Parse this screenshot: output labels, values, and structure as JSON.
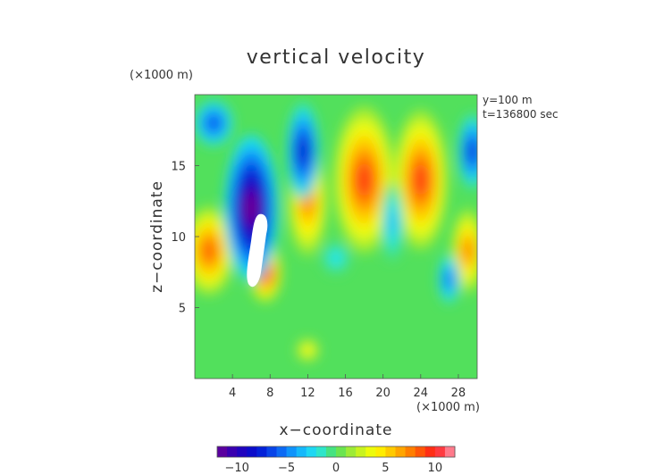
{
  "chart_data": {
    "type": "heatmap",
    "title": "vertical velocity",
    "xlabel": "x−coordinate",
    "ylabel": "z−coordinate",
    "x_unit": "(×1000 m)",
    "y_unit": "(×1000 m)",
    "annotations": [
      "y=100 m",
      "t=136800 sec"
    ],
    "xlim": [
      0,
      30
    ],
    "ylim": [
      0,
      20
    ],
    "x_ticks": [
      4,
      8,
      12,
      16,
      20,
      24,
      28
    ],
    "y_ticks": [
      5,
      10,
      15
    ],
    "x_tick_labels": [
      "4",
      "8",
      "12",
      "16",
      "20",
      "24",
      "28"
    ],
    "y_tick_labels": [
      "5",
      "10",
      "15"
    ],
    "colorbar": {
      "range": [
        -12,
        12
      ],
      "ticks": [
        -10,
        -5,
        0,
        5,
        10
      ],
      "tick_labels": [
        "−10",
        "−5",
        "0",
        "5",
        "10"
      ]
    },
    "colors": {
      "field_background": "#52e05c",
      "missing_region": "#ffffff"
    },
    "features": [
      {
        "kind": "updraft",
        "x": 1.5,
        "z": 9,
        "value": 8
      },
      {
        "kind": "updraft",
        "x": 7.5,
        "z": 7.5,
        "value": 9
      },
      {
        "kind": "updraft",
        "x": 12,
        "z": 12.5,
        "value": 7
      },
      {
        "kind": "updraft",
        "x": 18,
        "z": 14,
        "value": 9
      },
      {
        "kind": "updraft",
        "x": 24,
        "z": 14,
        "value": 9
      },
      {
        "kind": "updraft",
        "x": 29,
        "z": 9,
        "value": 7
      },
      {
        "kind": "downdraft",
        "x": 6,
        "z": 12,
        "value": -12
      },
      {
        "kind": "downdraft",
        "x": 2,
        "z": 18,
        "value": -6
      },
      {
        "kind": "downdraft",
        "x": 11.5,
        "z": 16,
        "value": -8
      },
      {
        "kind": "downdraft",
        "x": 21,
        "z": 11,
        "value": -3
      },
      {
        "kind": "downdraft",
        "x": 29.5,
        "z": 16,
        "value": -7
      },
      {
        "kind": "downdraft",
        "x": 27,
        "z": 7,
        "value": -5
      },
      {
        "kind": "downdraft",
        "x": 15,
        "z": 8.5,
        "value": -2
      },
      {
        "kind": "updraft",
        "x": 12,
        "z": 2,
        "value": 4
      }
    ]
  }
}
